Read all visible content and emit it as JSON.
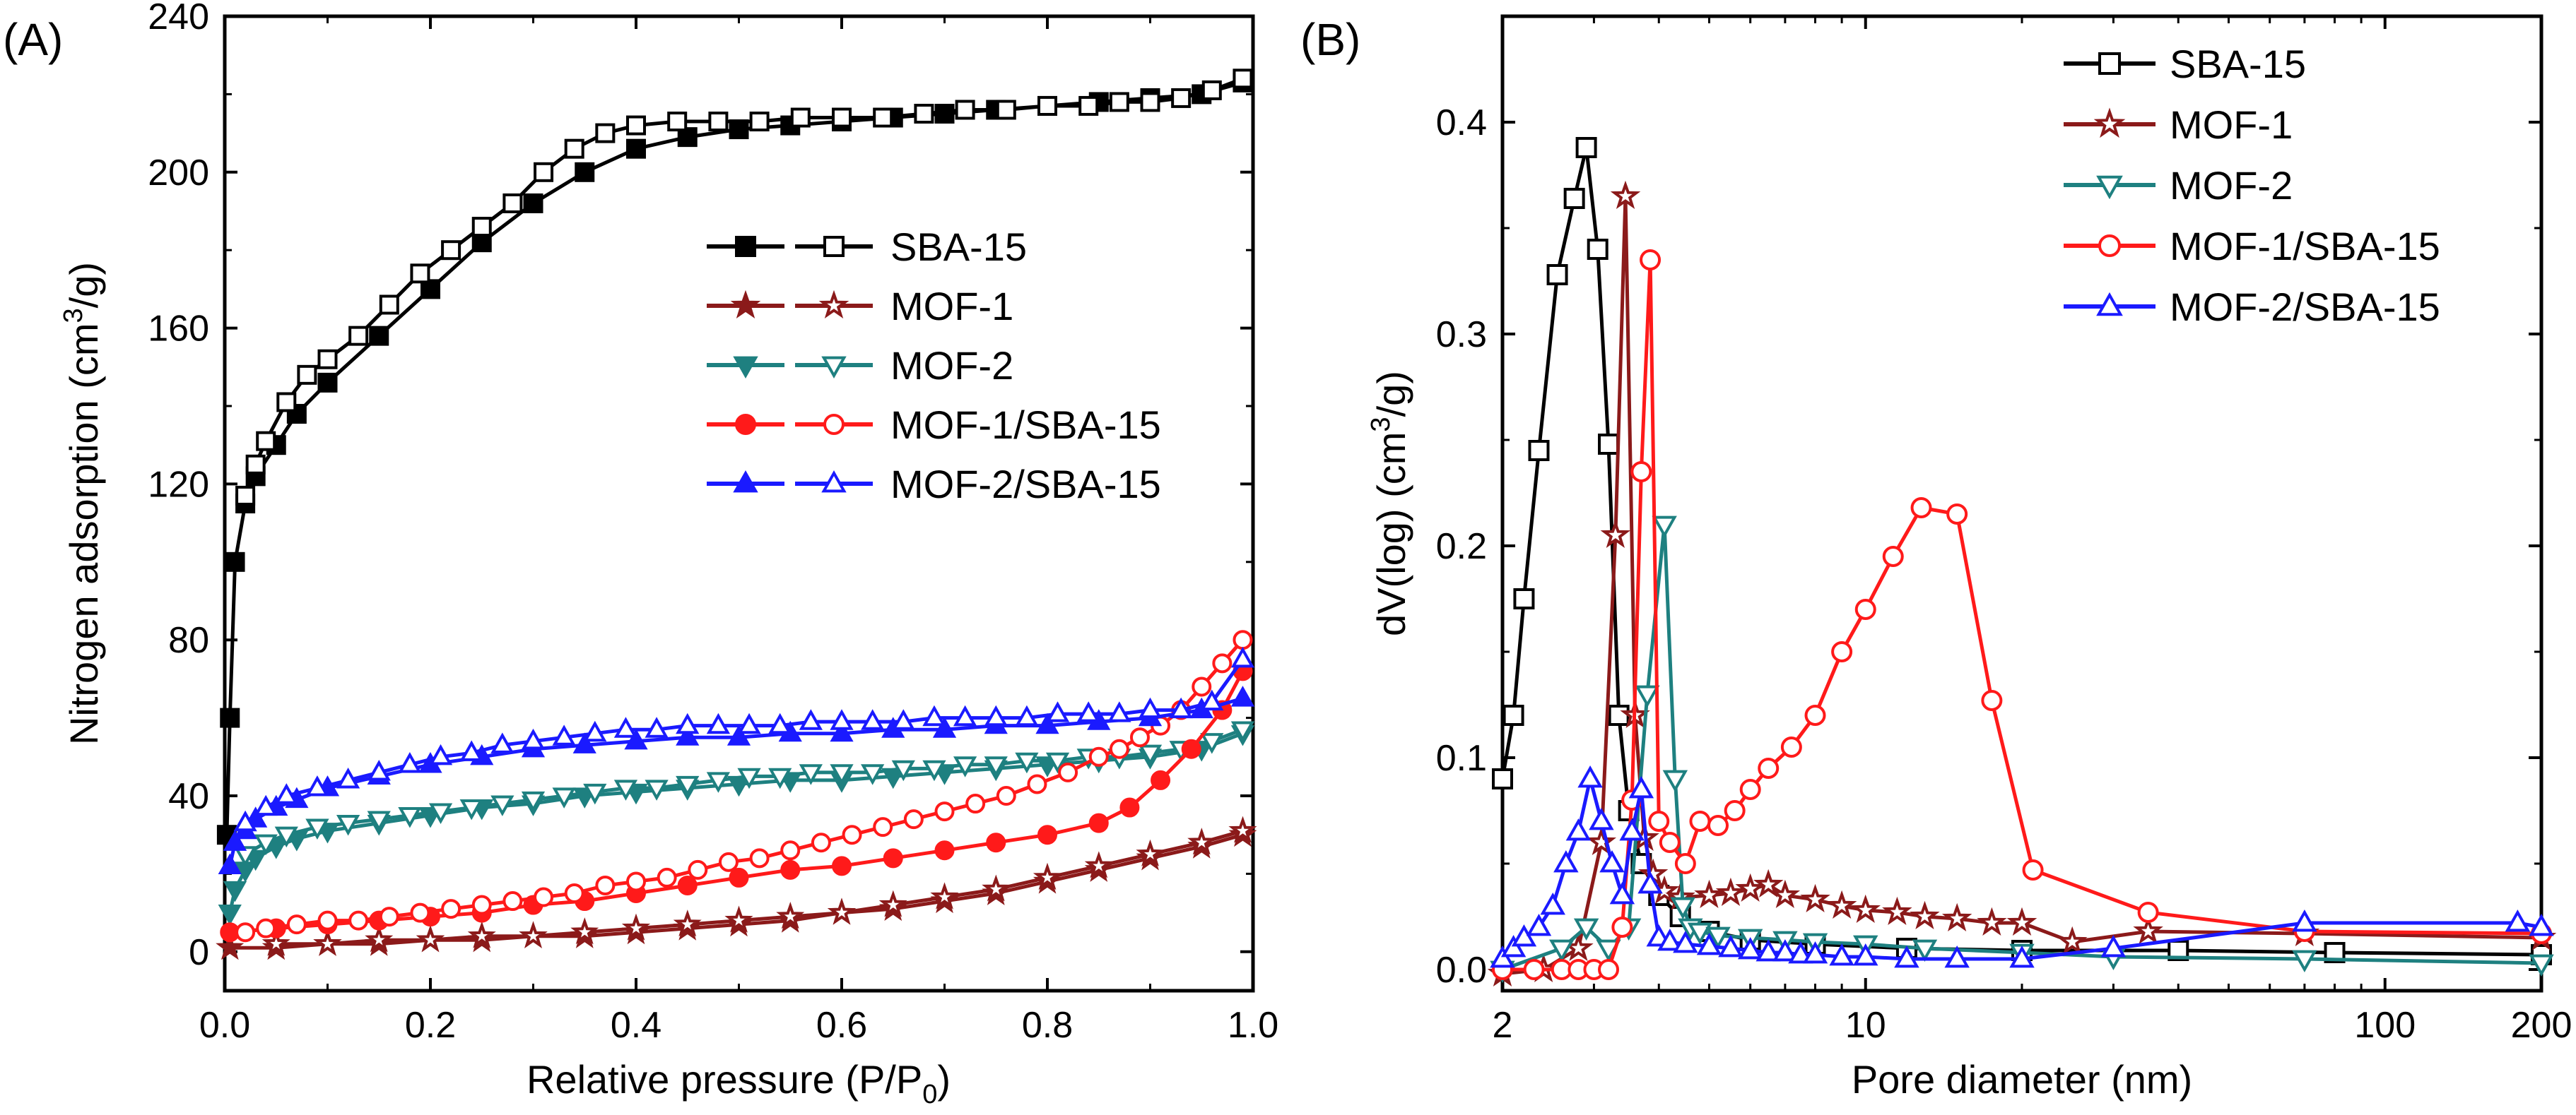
{
  "chart_data": [
    {
      "type": "line",
      "panel_label": "(A)",
      "xlabel": "Relative pressure (P/P0)",
      "xlabel_main": "Relative pressure (P/P",
      "xlabel_sub": "0",
      "xlabel_tail": ")",
      "ylabel": "Nitrogen adsorption (cm3/g)",
      "ylabel_main": "Nitrogen adsorption (cm",
      "ylabel_sup": "3",
      "ylabel_tail": "/g)",
      "xlim": [
        0.0,
        1.0
      ],
      "ylim": [
        -10,
        240
      ],
      "xticks": [
        0.0,
        0.2,
        0.4,
        0.6,
        0.8,
        1.0
      ],
      "xtick_labels": [
        "0.0",
        "0.2",
        "0.4",
        "0.6",
        "0.8",
        "1.0"
      ],
      "yticks": [
        0,
        40,
        80,
        120,
        160,
        200,
        240
      ],
      "ytick_labels": [
        "0",
        "40",
        "80",
        "120",
        "160",
        "200",
        "240"
      ],
      "legend_position": "center-right",
      "series": [
        {
          "name": "SBA-15",
          "color": "#000000",
          "marker": "square",
          "adsorption": {
            "x": [
              0.002,
              0.005,
              0.01,
              0.02,
              0.03,
              0.05,
              0.07,
              0.1,
              0.15,
              0.2,
              0.25,
              0.3,
              0.35,
              0.4,
              0.45,
              0.5,
              0.55,
              0.6,
              0.65,
              0.7,
              0.75,
              0.8,
              0.85,
              0.9,
              0.95,
              0.99
            ],
            "y": [
              30,
              60,
              100,
              115,
              122,
              130,
              138,
              146,
              158,
              170,
              182,
              192,
              200,
              206,
              209,
              211,
              212,
              213,
              214,
              215,
              216,
              217,
              218,
              219,
              220,
              223
            ]
          },
          "desorption": {
            "x": [
              0.99,
              0.96,
              0.93,
              0.9,
              0.87,
              0.84,
              0.8,
              0.76,
              0.72,
              0.68,
              0.64,
              0.6,
              0.56,
              0.52,
              0.48,
              0.44,
              0.4,
              0.37,
              0.34,
              0.31,
              0.28,
              0.25,
              0.22,
              0.19,
              0.16,
              0.13,
              0.1,
              0.08,
              0.06,
              0.04,
              0.03,
              0.02
            ],
            "y": [
              224,
              221,
              219,
              218,
              218,
              217,
              217,
              216,
              216,
              215,
              214,
              214,
              214,
              213,
              213,
              213,
              212,
              210,
              206,
              200,
              192,
              186,
              180,
              174,
              166,
              158,
              152,
              148,
              141,
              131,
              125,
              117
            ]
          }
        },
        {
          "name": "MOF-1",
          "color": "#8B1A1A",
          "marker": "star",
          "adsorption": {
            "x": [
              0.005,
              0.05,
              0.1,
              0.15,
              0.2,
              0.25,
              0.3,
              0.35,
              0.4,
              0.45,
              0.5,
              0.55,
              0.6,
              0.65,
              0.7,
              0.75,
              0.8,
              0.85,
              0.9,
              0.95,
              0.99
            ],
            "y": [
              1,
              1,
              2,
              2,
              3,
              3,
              4,
              4,
              5,
              6,
              7,
              8,
              10,
              11,
              13,
              15,
              18,
              21,
              24,
              27,
              30
            ]
          },
          "desorption": {
            "x": [
              0.99,
              0.95,
              0.9,
              0.85,
              0.8,
              0.75,
              0.7,
              0.65,
              0.6,
              0.55,
              0.5,
              0.45,
              0.4,
              0.35,
              0.3,
              0.25,
              0.2,
              0.15,
              0.1,
              0.05
            ],
            "y": [
              31,
              28,
              25,
              22,
              19,
              16,
              14,
              12,
              10,
              9,
              8,
              7,
              6,
              5,
              4,
              4,
              3,
              3,
              2,
              2
            ]
          }
        },
        {
          "name": "MOF-2",
          "color": "#1E8080",
          "marker": "triangle-down",
          "adsorption": {
            "x": [
              0.005,
              0.01,
              0.02,
              0.03,
              0.05,
              0.07,
              0.1,
              0.15,
              0.2,
              0.25,
              0.3,
              0.35,
              0.4,
              0.45,
              0.5,
              0.55,
              0.6,
              0.65,
              0.7,
              0.75,
              0.8,
              0.85,
              0.9,
              0.95,
              0.99
            ],
            "y": [
              10,
              16,
              21,
              24,
              27,
              29,
              31,
              33,
              35,
              37,
              38,
              40,
              41,
              42,
              43,
              44,
              44,
              45,
              46,
              47,
              48,
              49,
              50,
              52,
              56
            ]
          },
          "desorption": {
            "x": [
              0.99,
              0.96,
              0.93,
              0.9,
              0.87,
              0.84,
              0.81,
              0.78,
              0.75,
              0.72,
              0.69,
              0.66,
              0.63,
              0.6,
              0.57,
              0.54,
              0.51,
              0.48,
              0.45,
              0.42,
              0.39,
              0.36,
              0.33,
              0.3,
              0.27,
              0.24,
              0.21,
              0.18,
              0.15,
              0.12,
              0.09,
              0.06,
              0.04,
              0.02
            ],
            "y": [
              57,
              54,
              52,
              51,
              50,
              50,
              49,
              49,
              48,
              48,
              47,
              47,
              46,
              46,
              46,
              45,
              45,
              44,
              43,
              42,
              42,
              41,
              40,
              39,
              38,
              37,
              36,
              35,
              34,
              33,
              32,
              30,
              28,
              25
            ]
          }
        },
        {
          "name": "MOF-1/SBA-15",
          "color": "#FF1A1A",
          "marker": "circle",
          "adsorption": {
            "x": [
              0.005,
              0.05,
              0.1,
              0.15,
              0.2,
              0.25,
              0.3,
              0.35,
              0.4,
              0.45,
              0.5,
              0.55,
              0.6,
              0.65,
              0.7,
              0.75,
              0.8,
              0.85,
              0.88,
              0.91,
              0.94,
              0.97,
              0.99
            ],
            "y": [
              5,
              6,
              7,
              8,
              9,
              10,
              12,
              13,
              15,
              17,
              19,
              21,
              22,
              24,
              26,
              28,
              30,
              33,
              37,
              44,
              52,
              62,
              72
            ]
          },
          "desorption": {
            "x": [
              0.99,
              0.97,
              0.95,
              0.93,
              0.91,
              0.89,
              0.87,
              0.85,
              0.82,
              0.79,
              0.76,
              0.73,
              0.7,
              0.67,
              0.64,
              0.61,
              0.58,
              0.55,
              0.52,
              0.49,
              0.46,
              0.43,
              0.4,
              0.37,
              0.34,
              0.31,
              0.28,
              0.25,
              0.22,
              0.19,
              0.16,
              0.13,
              0.1,
              0.07,
              0.04,
              0.02
            ],
            "y": [
              80,
              74,
              68,
              62,
              58,
              55,
              52,
              50,
              46,
              43,
              40,
              38,
              36,
              34,
              32,
              30,
              28,
              26,
              24,
              23,
              21,
              19,
              18,
              17,
              15,
              14,
              13,
              12,
              11,
              10,
              9,
              8,
              8,
              7,
              6,
              5
            ]
          }
        },
        {
          "name": "MOF-2/SBA-15",
          "color": "#1A1AFF",
          "marker": "triangle-up",
          "adsorption": {
            "x": [
              0.005,
              0.01,
              0.02,
              0.03,
              0.05,
              0.07,
              0.1,
              0.15,
              0.2,
              0.25,
              0.3,
              0.35,
              0.4,
              0.45,
              0.5,
              0.55,
              0.6,
              0.65,
              0.7,
              0.75,
              0.8,
              0.85,
              0.9,
              0.95,
              0.99
            ],
            "y": [
              22,
              28,
              31,
              34,
              37,
              39,
              42,
              45,
              48,
              50,
              52,
              53,
              54,
              55,
              55,
              56,
              56,
              57,
              57,
              58,
              58,
              59,
              60,
              62,
              65
            ]
          },
          "desorption": {
            "x": [
              0.99,
              0.96,
              0.93,
              0.9,
              0.87,
              0.84,
              0.81,
              0.78,
              0.75,
              0.72,
              0.69,
              0.66,
              0.63,
              0.6,
              0.57,
              0.54,
              0.51,
              0.48,
              0.45,
              0.42,
              0.39,
              0.36,
              0.33,
              0.3,
              0.27,
              0.24,
              0.21,
              0.18,
              0.15,
              0.12,
              0.09,
              0.06,
              0.04,
              0.02
            ],
            "y": [
              75,
              64,
              62,
              62,
              61,
              61,
              61,
              60,
              60,
              60,
              60,
              59,
              59,
              59,
              59,
              58,
              58,
              58,
              58,
              57,
              57,
              56,
              55,
              54,
              53,
              51,
              50,
              48,
              46,
              44,
              42,
              40,
              37,
              33
            ]
          }
        }
      ]
    },
    {
      "type": "line",
      "panel_label": "(B)",
      "xlabel": "Pore diameter (nm)",
      "ylabel": "dV(log) (cm3/g)",
      "ylabel_main": "dV(log) (cm",
      "ylabel_sup": "3",
      "ylabel_tail": "/g)",
      "xscale": "log",
      "xlim": [
        2,
        200
      ],
      "ylim": [
        -0.01,
        0.45
      ],
      "xticks": [
        2,
        10,
        100,
        200
      ],
      "xtick_labels": [
        "2",
        "10",
        "100",
        "200"
      ],
      "yticks": [
        0.0,
        0.1,
        0.2,
        0.3,
        0.4
      ],
      "ytick_labels": [
        "0.0",
        "0.1",
        "0.2",
        "0.3",
        "0.4"
      ],
      "legend_position": "top-right",
      "series": [
        {
          "name": "SBA-15",
          "color": "#000000",
          "marker": "square",
          "x": [
            2.0,
            2.1,
            2.2,
            2.35,
            2.55,
            2.75,
            2.9,
            3.05,
            3.2,
            3.35,
            3.5,
            3.7,
            4.0,
            4.4,
            5.0,
            6.0,
            8.0,
            12.0,
            20.0,
            40.0,
            80.0,
            200.0
          ],
          "y": [
            0.09,
            0.12,
            0.175,
            0.245,
            0.328,
            0.364,
            0.388,
            0.34,
            0.248,
            0.12,
            0.075,
            0.05,
            0.035,
            0.025,
            0.018,
            0.014,
            0.012,
            0.01,
            0.009,
            0.009,
            0.008,
            0.007
          ]
        },
        {
          "name": "MOF-1",
          "color": "#8B1A1A",
          "marker": "star",
          "x": [
            2.0,
            2.4,
            2.8,
            3.1,
            3.3,
            3.45,
            3.6,
            3.75,
            3.9,
            4.1,
            4.4,
            5.0,
            5.5,
            6.0,
            6.5,
            7.0,
            8.0,
            9.0,
            10.0,
            11.5,
            13.0,
            15.0,
            17.5,
            20.0,
            25.0,
            35.0,
            70.0,
            200.0
          ],
          "y": [
            -0.002,
            0.0,
            0.01,
            0.06,
            0.205,
            0.365,
            0.12,
            0.062,
            0.045,
            0.037,
            0.034,
            0.035,
            0.036,
            0.038,
            0.04,
            0.035,
            0.033,
            0.03,
            0.028,
            0.027,
            0.025,
            0.024,
            0.022,
            0.022,
            0.013,
            0.018,
            0.017,
            0.015
          ]
        },
        {
          "name": "MOF-2",
          "color": "#1E8080",
          "marker": "triangle-down",
          "x": [
            2.0,
            2.6,
            2.9,
            3.2,
            3.5,
            3.8,
            4.1,
            4.3,
            4.45,
            4.6,
            4.8,
            5.2,
            6.0,
            7.0,
            8.0,
            10.0,
            13.0,
            20.0,
            30.0,
            70.0,
            200.0
          ],
          "y": [
            0.0,
            0.01,
            0.02,
            0.01,
            0.02,
            0.13,
            0.21,
            0.09,
            0.03,
            0.02,
            0.018,
            0.016,
            0.015,
            0.014,
            0.013,
            0.012,
            0.01,
            0.008,
            0.006,
            0.005,
            0.003
          ]
        },
        {
          "name": "MOF-1/SBA-15",
          "color": "#FF1A1A",
          "marker": "circle",
          "x": [
            2.0,
            2.3,
            2.6,
            2.8,
            3.0,
            3.2,
            3.4,
            3.55,
            3.7,
            3.85,
            4.0,
            4.2,
            4.5,
            4.8,
            5.2,
            5.6,
            6.0,
            6.5,
            7.2,
            8.0,
            9.0,
            10.0,
            11.3,
            12.8,
            15.0,
            17.5,
            21.0,
            35.0,
            70.0,
            200.0
          ],
          "y": [
            0.0,
            0.0,
            0.0,
            0.0,
            0.0,
            0.0,
            0.02,
            0.08,
            0.235,
            0.335,
            0.07,
            0.06,
            0.05,
            0.07,
            0.068,
            0.075,
            0.085,
            0.095,
            0.105,
            0.12,
            0.15,
            0.17,
            0.195,
            0.218,
            0.215,
            0.127,
            0.047,
            0.027,
            0.018,
            0.017
          ]
        },
        {
          "name": "MOF-2/SBA-15",
          "color": "#1A1AFF",
          "marker": "triangle-up",
          "x": [
            2.0,
            2.1,
            2.2,
            2.35,
            2.5,
            2.65,
            2.8,
            2.95,
            3.1,
            3.25,
            3.4,
            3.55,
            3.7,
            3.85,
            4.0,
            4.2,
            4.5,
            5.0,
            5.5,
            6.0,
            6.5,
            7.0,
            7.5,
            8.0,
            9.0,
            10.0,
            12.0,
            15.0,
            20.0,
            30.0,
            70.0,
            180.0,
            200.0
          ],
          "y": [
            0.005,
            0.01,
            0.015,
            0.02,
            0.03,
            0.05,
            0.065,
            0.09,
            0.07,
            0.05,
            0.035,
            0.065,
            0.085,
            0.04,
            0.015,
            0.013,
            0.012,
            0.011,
            0.01,
            0.009,
            0.008,
            0.008,
            0.007,
            0.007,
            0.006,
            0.006,
            0.005,
            0.005,
            0.005,
            0.01,
            0.022,
            0.022,
            0.02
          ]
        }
      ]
    }
  ]
}
